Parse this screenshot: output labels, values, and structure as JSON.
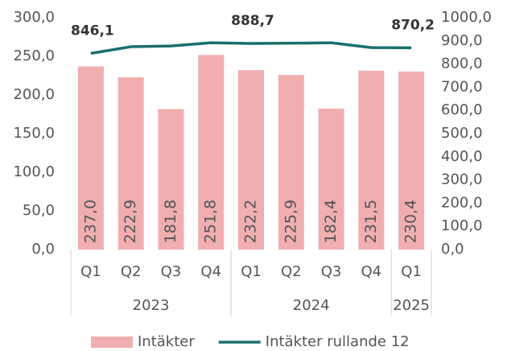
{
  "chart_data": {
    "type": "bar_line",
    "groups": [
      {
        "label": "2023",
        "categories": [
          "Q1",
          "Q2",
          "Q3",
          "Q4"
        ]
      },
      {
        "label": "2024",
        "categories": [
          "Q1",
          "Q2",
          "Q3",
          "Q4"
        ]
      },
      {
        "label": "2025",
        "categories": [
          "Q1"
        ]
      }
    ],
    "series": [
      {
        "name": "Intäkter",
        "type": "bar",
        "color": "#f0aeb1",
        "values": [
          237.0,
          222.9,
          181.8,
          251.8,
          232.2,
          225.9,
          182.4,
          231.5,
          230.4
        ],
        "value_labels": [
          "237,0",
          "222,9",
          "181,8",
          "251,8",
          "232,2",
          "225,9",
          "182,4",
          "231,5",
          "230,4"
        ]
      },
      {
        "name": "Intäkter rullande 12",
        "type": "line",
        "axis": "y2",
        "color": "#1b6e6e",
        "values": [
          846.1,
          875,
          878,
          892,
          888.7,
          890,
          892,
          871,
          870.2
        ],
        "value_labels": [
          "846,1",
          null,
          null,
          null,
          "888,7",
          null,
          null,
          null,
          "870,2"
        ]
      }
    ],
    "ylim": [
      0,
      300
    ],
    "yticks": [
      {
        "value": 0,
        "label": "0,0"
      },
      {
        "value": 50,
        "label": "50,0"
      },
      {
        "value": 100,
        "label": "100,0"
      },
      {
        "value": 150,
        "label": "150,0"
      },
      {
        "value": 200,
        "label": "200,0"
      },
      {
        "value": 250,
        "label": "250,0"
      },
      {
        "value": 300,
        "label": "300,0"
      }
    ],
    "y2lim": [
      0,
      1000
    ],
    "y2ticks": [
      {
        "value": 0,
        "label": "0,0"
      },
      {
        "value": 100,
        "label": "100,0"
      },
      {
        "value": 200,
        "label": "200,0"
      },
      {
        "value": 300,
        "label": "300,0"
      },
      {
        "value": 400,
        "label": "400,0"
      },
      {
        "value": 500,
        "label": "500,0"
      },
      {
        "value": 600,
        "label": "600,0"
      },
      {
        "value": 700,
        "label": "700,0"
      },
      {
        "value": 800,
        "label": "800,0"
      },
      {
        "value": 900,
        "label": "900,0"
      },
      {
        "value": 1000,
        "label": "1000,0"
      }
    ],
    "grid": false,
    "legend": "bottom"
  }
}
